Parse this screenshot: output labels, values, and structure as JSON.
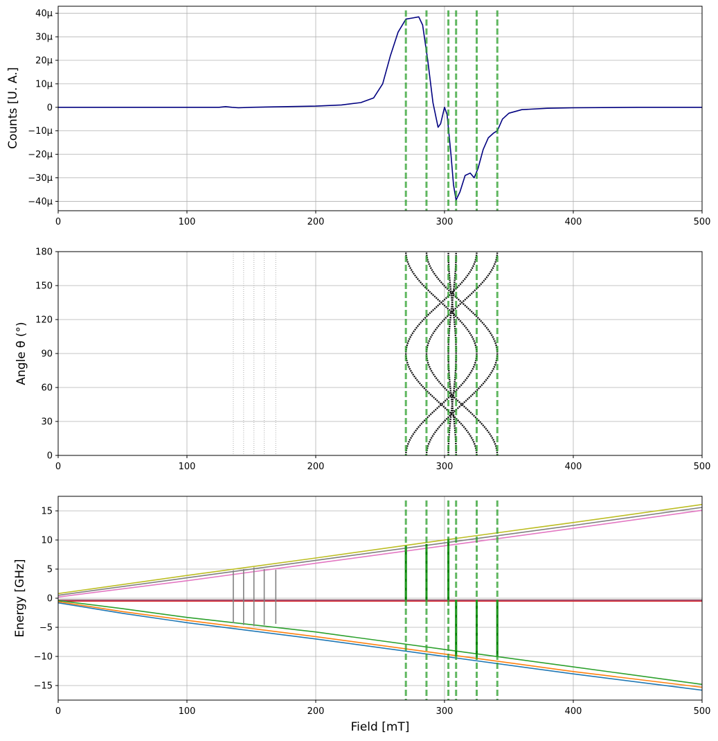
{
  "chart_data": [
    {
      "type": "line",
      "ylabel": "Counts [U. A.]",
      "xlabel": "",
      "xlim": [
        0,
        500
      ],
      "ylim": [
        -44,
        43
      ],
      "x_ticks": [
        "0",
        "100",
        "200",
        "300",
        "400",
        "500"
      ],
      "y_ticks": [
        {
          "v": 40,
          "label": "40μ"
        },
        {
          "v": 30,
          "label": "30μ"
        },
        {
          "v": 20,
          "label": "20μ"
        },
        {
          "v": 10,
          "label": "10μ"
        },
        {
          "v": 0,
          "label": "0"
        },
        {
          "v": -10,
          "label": "−10μ"
        },
        {
          "v": -20,
          "label": "−20μ"
        },
        {
          "v": -30,
          "label": "−30μ"
        },
        {
          "v": -40,
          "label": "−40μ"
        }
      ],
      "grid": true,
      "series": [
        {
          "color": "#000080",
          "x": [
            0,
            100,
            125,
            130,
            135,
            140,
            150,
            200,
            220,
            235,
            245,
            252,
            258,
            264,
            270,
            275,
            280,
            283,
            287,
            291,
            295,
            297,
            300,
            302,
            305,
            307,
            309,
            312,
            316,
            320,
            323,
            326,
            330,
            334,
            338,
            341,
            345,
            350,
            360,
            380,
            400,
            450,
            500
          ],
          "y": [
            0,
            0,
            0,
            0.3,
            0,
            -0.2,
            0,
            0.5,
            1.0,
            2.0,
            4.0,
            10.0,
            22.0,
            32.0,
            37.5,
            38.0,
            38.5,
            35.0,
            20.0,
            2.0,
            -8.5,
            -7.0,
            0,
            -3.0,
            -20.0,
            -33.0,
            -39.5,
            -36.0,
            -29.0,
            -28.0,
            -30.0,
            -26.0,
            -18.0,
            -13.0,
            -11.0,
            -10.0,
            -5.0,
            -2.5,
            -1.0,
            -0.4,
            -0.2,
            0,
            0
          ]
        }
      ],
      "vlines": [
        270,
        286,
        303,
        309,
        325,
        341
      ],
      "vline_color": "#2ca02c"
    },
    {
      "type": "scatter",
      "ylabel": "Angle θ (°)",
      "xlabel": "",
      "xlim": [
        0,
        500
      ],
      "ylim": [
        0,
        180
      ],
      "x_ticks": [
        "0",
        "100",
        "200",
        "300",
        "400",
        "500"
      ],
      "y_ticks": [
        {
          "v": 0,
          "label": "0"
        },
        {
          "v": 30,
          "label": "30"
        },
        {
          "v": 60,
          "label": "60"
        },
        {
          "v": 90,
          "label": "90"
        },
        {
          "v": 120,
          "label": "120"
        },
        {
          "v": 150,
          "label": "150"
        },
        {
          "v": 180,
          "label": "180"
        }
      ],
      "grid": true,
      "faint_lines": [
        136,
        144,
        152,
        160,
        169
      ],
      "faint_color": "#b8b8b8",
      "resonance_curves": [
        {
          "x_at_0": 270,
          "x_at_90": 325
        },
        {
          "x_at_0": 286,
          "x_at_90": 341
        },
        {
          "x_at_0": 303,
          "x_at_90": 309
        },
        {
          "x_at_0": 309,
          "x_at_90": 303
        },
        {
          "x_at_0": 325,
          "x_at_90": 270
        },
        {
          "x_at_0": 341,
          "x_at_90": 286
        }
      ],
      "curve_color": "#111111",
      "vlines": [
        270,
        286,
        303,
        309,
        325,
        341
      ],
      "vline_color": "#2ca02c"
    },
    {
      "type": "line",
      "ylabel": "Energy [GHz]",
      "xlabel": "Field [mT]",
      "xlim": [
        0,
        500
      ],
      "ylim": [
        -17.5,
        17.5
      ],
      "x_ticks": [
        "0",
        "100",
        "200",
        "300",
        "400",
        "500"
      ],
      "y_ticks": [
        {
          "v": 15,
          "label": "15"
        },
        {
          "v": 10,
          "label": "10"
        },
        {
          "v": 5,
          "label": "5"
        },
        {
          "v": 0,
          "label": "0"
        },
        {
          "v": -5,
          "label": "−5"
        },
        {
          "v": -10,
          "label": "−10"
        },
        {
          "v": -15,
          "label": "−15"
        }
      ],
      "grid": true,
      "series": [
        {
          "color": "#bcbd22",
          "x": [
            0,
            100,
            200,
            300,
            400,
            500
          ],
          "y": [
            0.8,
            3.9,
            6.9,
            10.0,
            13.0,
            16.1
          ]
        },
        {
          "color": "#7f7f7f",
          "x": [
            0,
            100,
            200,
            300,
            400,
            500
          ],
          "y": [
            0.5,
            3.5,
            6.5,
            9.5,
            12.5,
            15.6
          ]
        },
        {
          "color": "#e377c2",
          "x": [
            0,
            100,
            200,
            300,
            400,
            500
          ],
          "y": [
            0.2,
            3.0,
            6.0,
            9.0,
            12.0,
            15.1
          ]
        },
        {
          "color": "#8c564b",
          "x": [
            0,
            100,
            200,
            300,
            400,
            500
          ],
          "y": [
            -0.3,
            -0.3,
            -0.3,
            -0.3,
            -0.3,
            -0.3
          ]
        },
        {
          "color": "#9467bd",
          "x": [
            0,
            100,
            200,
            300,
            400,
            500
          ],
          "y": [
            -0.4,
            -0.4,
            -0.4,
            -0.4,
            -0.4,
            -0.4
          ]
        },
        {
          "color": "#d62728",
          "x": [
            0,
            100,
            200,
            300,
            400,
            500
          ],
          "y": [
            -0.5,
            -0.5,
            -0.5,
            -0.5,
            -0.5,
            -0.5
          ]
        },
        {
          "color": "#2ca02c",
          "x": [
            0,
            50,
            100,
            200,
            300,
            400,
            500
          ],
          "y": [
            -0.4,
            -1.8,
            -3.3,
            -5.8,
            -8.8,
            -11.8,
            -14.8
          ]
        },
        {
          "color": "#ff7f0e",
          "x": [
            0,
            50,
            100,
            200,
            300,
            400,
            500
          ],
          "y": [
            -0.6,
            -2.3,
            -3.8,
            -6.6,
            -9.6,
            -12.6,
            -15.3
          ]
        },
        {
          "color": "#1f77b4",
          "x": [
            0,
            50,
            100,
            200,
            300,
            400,
            500
          ],
          "y": [
            -0.8,
            -2.6,
            -4.2,
            -7.0,
            -10.0,
            -13.0,
            -15.8
          ]
        }
      ],
      "transitions_gray": [
        {
          "x": 136,
          "y1": -4.3,
          "y2": 4.8
        },
        {
          "x": 144,
          "y1": -4.6,
          "y2": 5.0
        },
        {
          "x": 152,
          "y1": -4.8,
          "y2": 5.3
        },
        {
          "x": 160,
          "y1": -4.6,
          "y2": 5.0
        },
        {
          "x": 169,
          "y1": -4.4,
          "y2": 4.9
        }
      ],
      "transitions_green": [
        {
          "x": 270,
          "y1": -0.3,
          "y2": 9.0
        },
        {
          "x": 286,
          "y1": -0.3,
          "y2": 9.3
        },
        {
          "x": 303,
          "y1": -0.3,
          "y2": 10.2
        },
        {
          "x": 309,
          "y1": -0.3,
          "y2": -10.0
        },
        {
          "x": 325,
          "y1": -0.3,
          "y2": -10.2
        },
        {
          "x": 341,
          "y1": -0.3,
          "y2": -10.0
        }
      ],
      "gray_color": "#808080",
      "green_color": "#008000",
      "vlines": [
        270,
        286,
        303,
        309,
        325,
        341
      ],
      "vline_color": "#2ca02c"
    }
  ]
}
